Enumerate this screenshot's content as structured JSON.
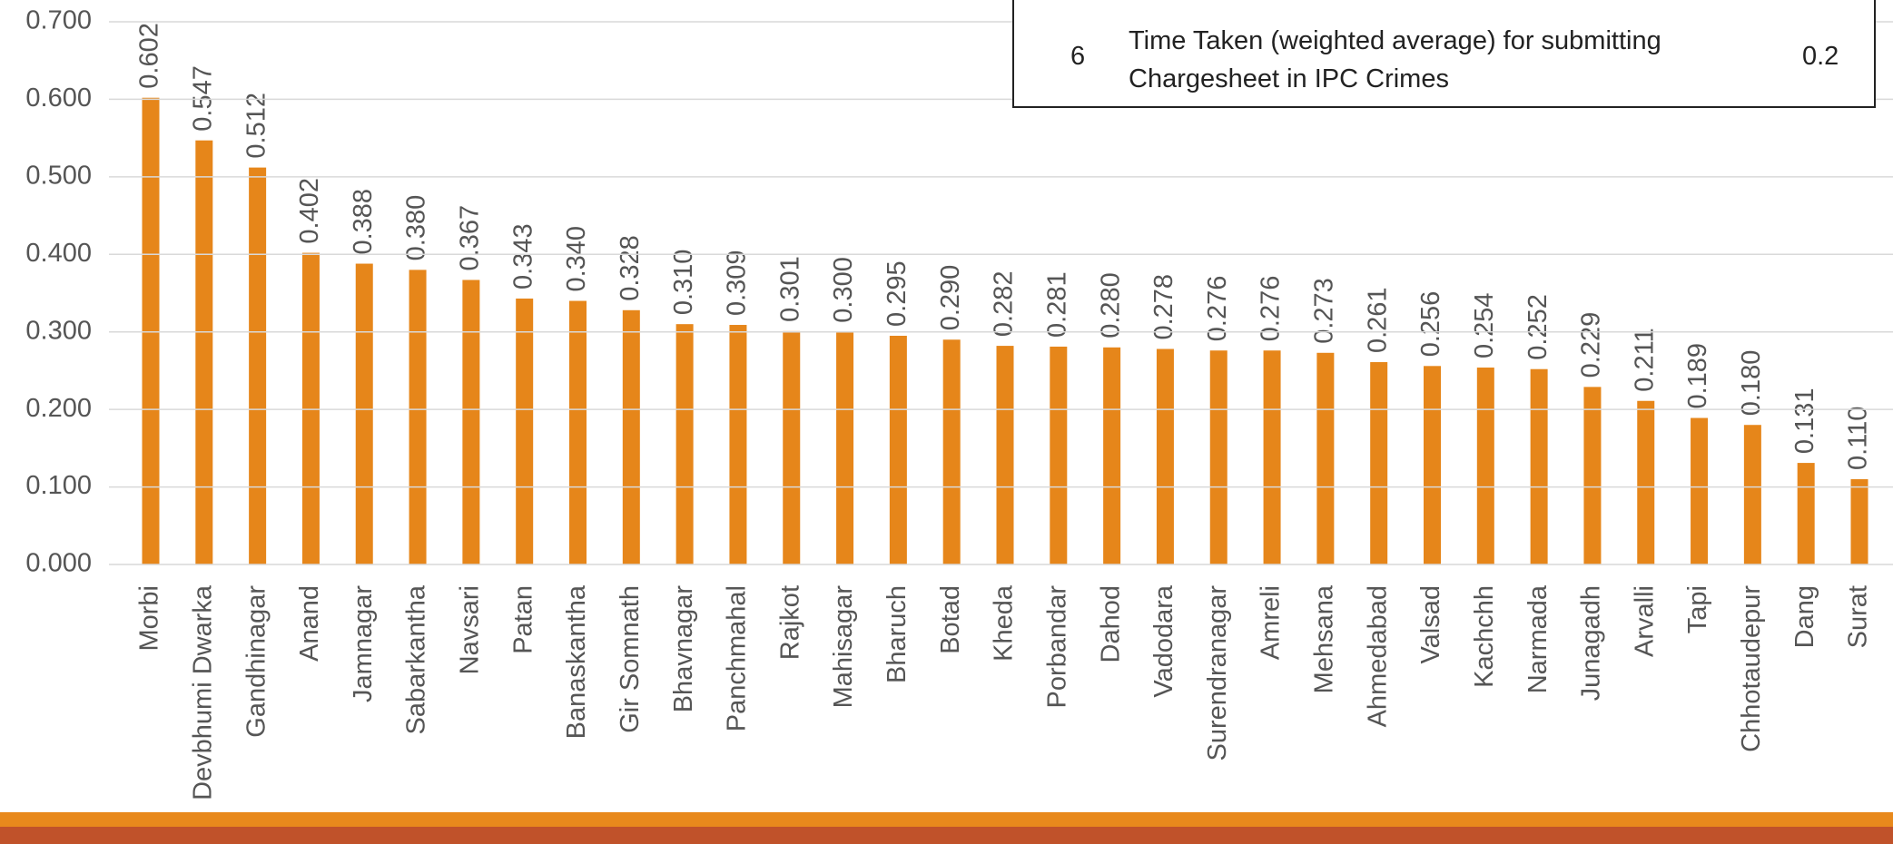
{
  "chart_data": {
    "type": "bar",
    "categories": [
      "Morbi",
      "Devbhumi Dwarka",
      "Gandhinagar",
      "Anand",
      "Jamnagar",
      "Sabarkantha",
      "Navsari",
      "Patan",
      "Banaskantha",
      "Gir Somnath",
      "Bhavnagar",
      "Panchmahal",
      "Rajkot",
      "Mahisagar",
      "Bharuch",
      "Botad",
      "Kheda",
      "Porbandar",
      "Dahod",
      "Vadodara",
      "Surendranagar",
      "Amreli",
      "Mehsana",
      "Ahmedabad",
      "Valsad",
      "Kachchh",
      "Narmada",
      "Junagadh",
      "Arvalli",
      "Tapi",
      "Chhotaudepur",
      "Dang",
      "Surat"
    ],
    "values": [
      0.602,
      0.547,
      0.512,
      0.402,
      0.388,
      0.38,
      0.367,
      0.343,
      0.34,
      0.328,
      0.31,
      0.309,
      0.301,
      0.3,
      0.295,
      0.29,
      0.282,
      0.281,
      0.28,
      0.278,
      0.276,
      0.276,
      0.273,
      0.261,
      0.256,
      0.254,
      0.252,
      0.229,
      0.211,
      0.189,
      0.18,
      0.131,
      0.11
    ],
    "value_labels": [
      "0.602",
      "0.547",
      "0.512",
      "0.402",
      "0.388",
      "0.380",
      "0.367",
      "0.343",
      "0.340",
      "0.328",
      "0.310",
      "0.309",
      "0.301",
      "0.300",
      "0.295",
      "0.290",
      "0.282",
      "0.281",
      "0.280",
      "0.278",
      "0.276",
      "0.276",
      "0.273",
      "0.261",
      "0.256",
      "0.254",
      "0.252",
      "0.229",
      "0.211",
      "0.189",
      "0.180",
      "0.131",
      "0.110"
    ],
    "color": "#e6861a",
    "ylim": [
      0,
      0.7
    ],
    "yticks": [
      {
        "value": 0,
        "label": "0.000"
      },
      {
        "value": 0.1,
        "label": "0.100"
      },
      {
        "value": 0.2,
        "label": "0.200"
      },
      {
        "value": 0.3,
        "label": "0.300"
      },
      {
        "value": 0.4,
        "label": "0.400"
      },
      {
        "value": 0.5,
        "label": "0.500"
      },
      {
        "value": 0.6,
        "label": "0.600"
      },
      {
        "value": 0.7,
        "label": "0.700"
      }
    ],
    "grid": true
  },
  "table": {
    "rows": [
      [
        "6",
        "Time Taken (weighted average) for submitting Chargesheet in IPC Crimes",
        "0.2"
      ]
    ]
  }
}
